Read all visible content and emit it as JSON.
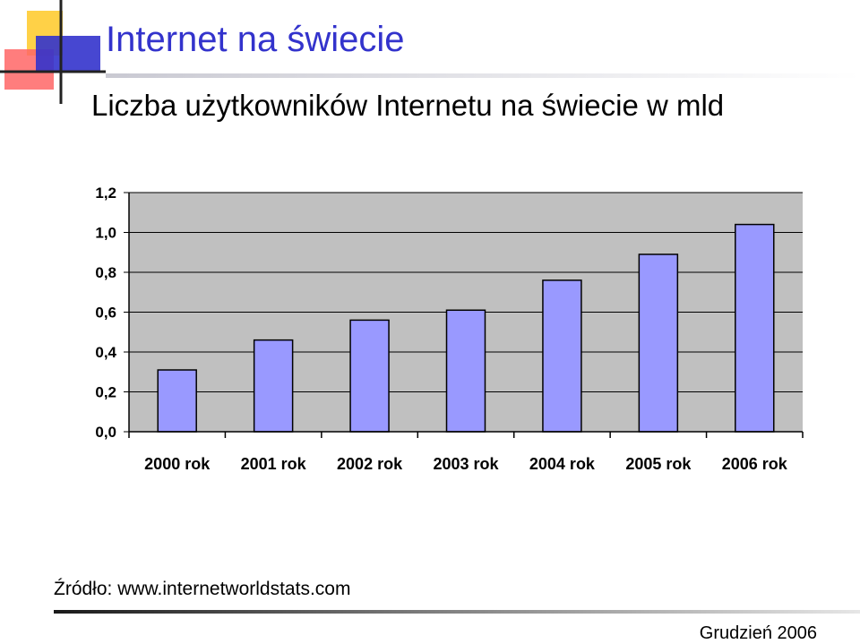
{
  "slide": {
    "title": "Internet na świecie",
    "source": "Źródło: www.internetworldstats.com",
    "date": "Grudzień 2006",
    "accent_color": "#3333cc"
  },
  "chart_data": {
    "type": "bar",
    "title": "Liczba użytkowników Internetu na świecie w mld",
    "xlabel": "",
    "ylabel": "",
    "categories": [
      "2000 rok",
      "2001 rok",
      "2002 rok",
      "2003 rok",
      "2004 rok",
      "2005 rok",
      "2006 rok"
    ],
    "values": [
      0.31,
      0.46,
      0.56,
      0.61,
      0.76,
      0.89,
      1.04
    ],
    "ylim": [
      0,
      1.2
    ],
    "yticks": [
      "0,0",
      "0,2",
      "0,4",
      "0,6",
      "0,8",
      "1,0",
      "1,2"
    ],
    "grid": true,
    "legend": "none",
    "bar_color": "#9999ff",
    "plot_background": "#c0c0c0"
  }
}
